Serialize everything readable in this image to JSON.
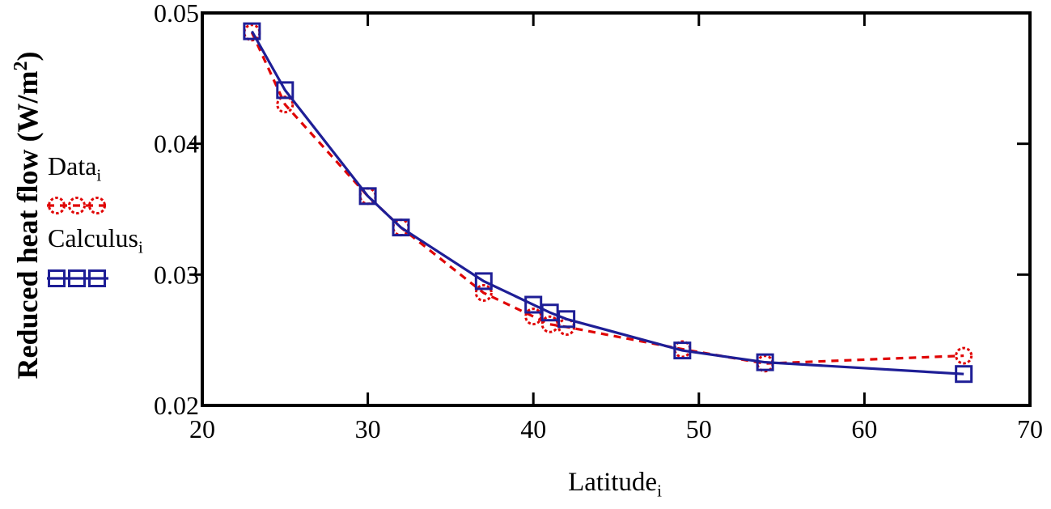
{
  "chart_data": {
    "type": "line",
    "title": "",
    "xlabel": "Latitude",
    "xlabel_sub": "i",
    "ylabel": "Reduced heat flow (W/m²)",
    "ylabel_prefix": "Reduced heat flow (W/m",
    "ylabel_sup": "2",
    "ylabel_suffix": ")",
    "xlim": [
      20,
      70
    ],
    "ylim": [
      0.02,
      0.05
    ],
    "x_ticks": [
      20,
      30,
      40,
      50,
      60,
      70
    ],
    "x_tick_labels": [
      "20",
      "30",
      "40",
      "50",
      "60",
      "70"
    ],
    "y_ticks": [
      0.02,
      0.03,
      0.04,
      0.05
    ],
    "y_tick_labels": [
      "0.02",
      "0.03",
      "0.04",
      "0.05"
    ],
    "grid": false,
    "legend_position": "left",
    "x": [
      23,
      25,
      30,
      32,
      37,
      40,
      41,
      42,
      49,
      54,
      66
    ],
    "series": [
      {
        "name": "Data",
        "subscript": "i",
        "color": "#e00505",
        "marker": "circle",
        "line": "dashed",
        "values": [
          0.0485,
          0.043,
          0.036,
          0.0336,
          0.0286,
          0.0268,
          0.0262,
          0.026,
          0.0243,
          0.0232,
          0.0238
        ]
      },
      {
        "name": "Calculus",
        "subscript": "i",
        "color": "#1e1e96",
        "marker": "square",
        "line": "solid",
        "values": [
          0.0486,
          0.0441,
          0.036,
          0.0336,
          0.0295,
          0.0277,
          0.0271,
          0.0266,
          0.0242,
          0.0233,
          0.0224
        ]
      }
    ]
  }
}
